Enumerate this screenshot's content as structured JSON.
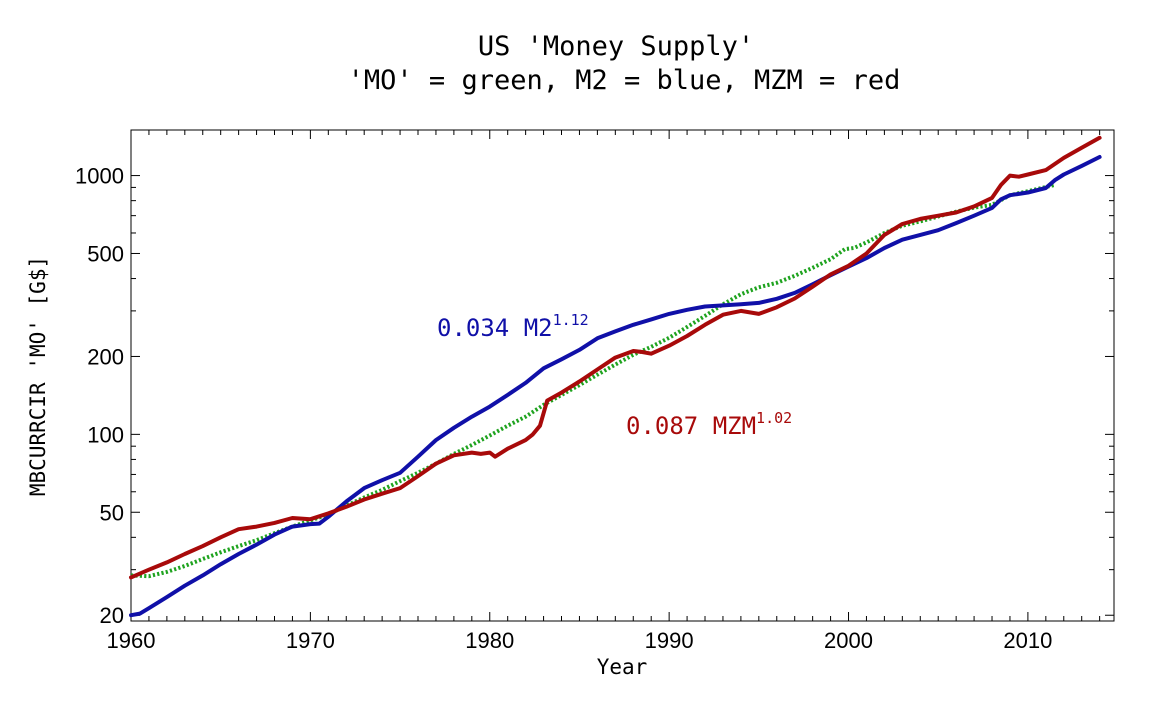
{
  "chart_data": {
    "type": "line",
    "title": "US 'Money Supply'",
    "subtitle": "'MO' = green, M2 = blue, MZM = red",
    "xlabel": "Year",
    "ylabel": "MBCURRCIR 'MO' [G$]",
    "xlim": [
      1960,
      2014.8
    ],
    "ylim": [
      19,
      1500
    ],
    "yscale": "log",
    "grid": false,
    "x_ticks": [
      1960,
      1970,
      1980,
      1990,
      2000,
      2010
    ],
    "x_tick_labels": [
      "1960",
      "1970",
      "1980",
      "1990",
      "2000",
      "2010"
    ],
    "y_ticks": [
      20,
      50,
      100,
      200,
      500,
      1000
    ],
    "y_tick_labels": [
      "20",
      "50",
      "100",
      "200",
      "500",
      "1000"
    ],
    "colors": {
      "green": "#1fa31f",
      "blue": "#1010a8",
      "red": "#a80a0a"
    },
    "series": [
      {
        "key": "mo",
        "color": "#1fa31f",
        "style": "dotted",
        "x": [
          1960,
          1961,
          1962,
          1963,
          1964,
          1965,
          1966,
          1967,
          1968,
          1969,
          1970,
          1971,
          1972,
          1973,
          1974,
          1975,
          1976,
          1977,
          1978,
          1979,
          1980,
          1981,
          1982,
          1983,
          1984,
          1985,
          1986,
          1987,
          1988,
          1989,
          1990,
          1991,
          1992,
          1993,
          1994,
          1995,
          1996,
          1997,
          1998,
          1999,
          1999.8,
          2000.3,
          2001,
          2002,
          2003,
          2004,
          2005,
          2006,
          2007,
          2008,
          2009,
          2010,
          2011.5
        ],
        "values": [
          28.5,
          28.3,
          29.4,
          31.0,
          33.0,
          35.0,
          37.0,
          39.0,
          41.5,
          44.0,
          46.5,
          49.0,
          53.0,
          57.0,
          61.0,
          66.0,
          71.0,
          77.0,
          84.0,
          91.0,
          99.0,
          108.0,
          117.0,
          130.0,
          142.0,
          155.0,
          170.0,
          186.0,
          203.0,
          218.0,
          236.0,
          260.0,
          287.0,
          318.0,
          348.0,
          370.0,
          385.0,
          410.0,
          440.0,
          475.0,
          520.0,
          525.0,
          552.0,
          600.0,
          640.0,
          665.0,
          695.0,
          725.0,
          752.0,
          770.0,
          840.0,
          870.0,
          920.0
        ]
      },
      {
        "key": "m2",
        "color": "#1010a8",
        "style": "solid",
        "x": [
          1960,
          1960.5,
          1961,
          1962,
          1963,
          1964,
          1965,
          1966,
          1967,
          1968,
          1969,
          1970,
          1970.5,
          1971,
          1972,
          1973,
          1974,
          1975,
          1976,
          1977,
          1978,
          1979,
          1980,
          1981,
          1982,
          1983,
          1984,
          1985,
          1986,
          1987,
          1988,
          1989,
          1990,
          1991,
          1992,
          1993,
          1994,
          1995,
          1996,
          1997,
          1998,
          1999,
          2000,
          2001,
          2002,
          2003,
          2004,
          2005,
          2006,
          2007,
          2008,
          2008.5,
          2009,
          2010,
          2011,
          2011.5,
          2012,
          2013,
          2014
        ],
        "values": [
          20.0,
          20.3,
          21.3,
          23.5,
          26.0,
          28.5,
          31.5,
          34.5,
          37.5,
          41.0,
          44.0,
          45.0,
          45.2,
          48.0,
          55.0,
          62.0,
          66.5,
          71.0,
          82.0,
          95.0,
          106.0,
          117.0,
          128.0,
          142.0,
          158.0,
          180.0,
          195.0,
          212.0,
          235.0,
          250.0,
          265.0,
          278.0,
          292.0,
          303.0,
          312.0,
          315.0,
          318.0,
          322.0,
          334.0,
          352.0,
          380.0,
          412.0,
          445.0,
          480.0,
          525.0,
          565.0,
          590.0,
          615.0,
          655.0,
          700.0,
          750.0,
          810.0,
          840.0,
          860.0,
          895.0,
          960.0,
          1010.0,
          1090.0,
          1180.0
        ]
      },
      {
        "key": "mzm",
        "color": "#a80a0a",
        "style": "solid",
        "x": [
          1960,
          1961,
          1962,
          1963,
          1964,
          1965,
          1966,
          1967,
          1968,
          1969,
          1970,
          1971,
          1972,
          1973,
          1974,
          1975,
          1976,
          1977,
          1978,
          1979,
          1979.5,
          1980,
          1980.3,
          1981,
          1982,
          1982.4,
          1982.8,
          1983.2,
          1984,
          1985,
          1986,
          1987,
          1988,
          1988.5,
          1989,
          1990,
          1991,
          1992,
          1993,
          1994,
          1995,
          1996,
          1997,
          1998,
          1999,
          2000,
          2001,
          2002,
          2003,
          2004,
          2005,
          2006,
          2007,
          2008,
          2008.5,
          2009,
          2009.5,
          2010,
          2011,
          2012,
          2013,
          2014
        ],
        "values": [
          28.0,
          30.0,
          32.0,
          34.5,
          37.0,
          40.0,
          43.0,
          44.0,
          45.5,
          47.5,
          47.0,
          49.5,
          52.5,
          56.0,
          59.0,
          62.0,
          69.0,
          77.0,
          83.0,
          85.0,
          84.0,
          85.0,
          82.0,
          88.0,
          95.0,
          100.0,
          108.0,
          135.0,
          145.0,
          160.0,
          178.0,
          198.0,
          210.0,
          208.0,
          205.0,
          220.0,
          240.0,
          265.0,
          290.0,
          300.0,
          292.0,
          310.0,
          335.0,
          372.0,
          415.0,
          448.0,
          500.0,
          590.0,
          650.0,
          680.0,
          700.0,
          720.0,
          760.0,
          820.0,
          920.0,
          1000.0,
          990.0,
          1010.0,
          1050.0,
          1170.0,
          1280.0,
          1400.0
        ]
      }
    ],
    "annotations": [
      {
        "key": "m2",
        "text": "0.034 M2",
        "sup": "1.12",
        "color": "#1010a8"
      },
      {
        "key": "mzm",
        "text": "0.087 MZM",
        "sup": "1.02",
        "color": "#a80a0a"
      }
    ]
  }
}
